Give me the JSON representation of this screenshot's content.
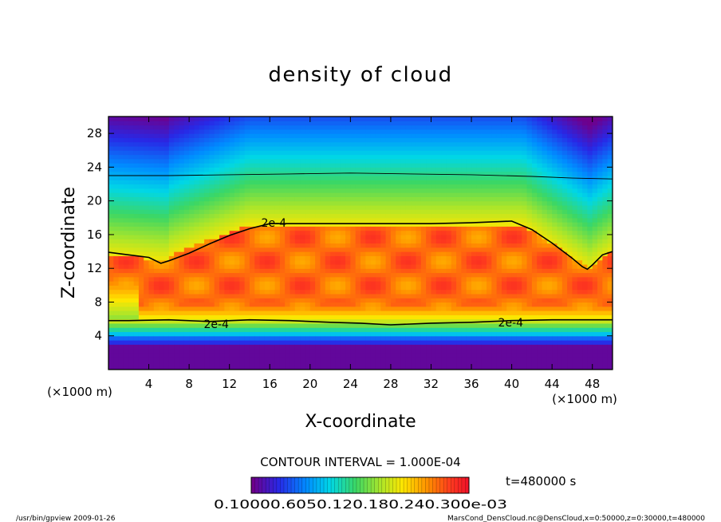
{
  "chart_data": {
    "type": "heatmap",
    "title": "density of cloud",
    "xlabel": "X-coordinate",
    "ylabel": "Z-coordinate",
    "x_unit": "(×1000 m)",
    "y_unit": "(×1000 m)",
    "xlim": [
      0,
      50
    ],
    "ylim": [
      0,
      30
    ],
    "x_ticks": [
      4,
      8,
      12,
      16,
      20,
      24,
      28,
      32,
      36,
      40,
      44,
      48
    ],
    "y_ticks": [
      4,
      8,
      12,
      16,
      20,
      24,
      28
    ],
    "x_tick_labels": [
      "4",
      "8",
      "12",
      "16",
      "20",
      "24",
      "28",
      "32",
      "36",
      "40",
      "44",
      "48"
    ],
    "y_tick_labels": [
      "4",
      "8",
      "12",
      "16",
      "20",
      "24",
      "28"
    ],
    "contour_interval_text": "CONTOUR INTERVAL = 1.000E-04",
    "contour_labels": [
      {
        "text": "2e-4",
        "x": 16.4,
        "z": 17.4
      },
      {
        "text": "2e-4",
        "x": 10.7,
        "z": 5.4
      },
      {
        "text": "2e-4",
        "x": 39.9,
        "z": 5.6
      }
    ],
    "contours": [
      {
        "level": 0.0002,
        "points": [
          [
            0,
            13.9
          ],
          [
            2,
            13.6
          ],
          [
            4,
            13.3
          ],
          [
            5.2,
            12.6
          ],
          [
            6,
            12.9
          ],
          [
            8,
            13.8
          ],
          [
            10,
            14.9
          ],
          [
            12,
            15.9
          ],
          [
            14,
            16.7
          ],
          [
            16,
            17.3
          ],
          [
            20,
            17.3
          ],
          [
            24,
            17.3
          ],
          [
            28,
            17.3
          ],
          [
            32,
            17.3
          ],
          [
            36,
            17.4
          ],
          [
            40,
            17.6
          ],
          [
            42,
            16.6
          ],
          [
            44,
            15.0
          ],
          [
            46,
            13.2
          ],
          [
            47,
            12.2
          ],
          [
            47.5,
            11.9
          ],
          [
            48,
            12.4
          ],
          [
            49,
            13.6
          ],
          [
            50,
            14.0
          ]
        ]
      },
      {
        "level": 0.0002,
        "points": [
          [
            0,
            5.8
          ],
          [
            2,
            5.8
          ],
          [
            6,
            5.9
          ],
          [
            10,
            5.7
          ],
          [
            14,
            5.9
          ],
          [
            18,
            5.8
          ],
          [
            22,
            5.6
          ],
          [
            25,
            5.5
          ],
          [
            28,
            5.3
          ],
          [
            32,
            5.5
          ],
          [
            36,
            5.6
          ],
          [
            40,
            5.8
          ],
          [
            44,
            5.9
          ],
          [
            48,
            5.9
          ],
          [
            50,
            5.9
          ]
        ]
      },
      {
        "level": 0.0001,
        "points": [
          [
            0,
            23.0
          ],
          [
            6,
            23.0
          ],
          [
            12,
            23.1
          ],
          [
            18,
            23.2
          ],
          [
            24,
            23.3
          ],
          [
            30,
            23.2
          ],
          [
            36,
            23.1
          ],
          [
            42,
            22.9
          ],
          [
            46,
            22.7
          ],
          [
            50,
            22.6
          ]
        ]
      }
    ],
    "colorbar_labels": [
      "0.10000e-3",
      "0.60000e-4",
      "0.12000e-3",
      "0.18000e-3",
      "0.24000e-3",
      "0.30000e-3"
    ],
    "colorbar_label_text": "0.10000.6050.120.180.240.300e-03",
    "time_label": "t=480000 s",
    "footer_left": "/usr/bin/gpview 2009-01-26",
    "footer_right": "MarsCond_DensCloud.nc@DensCloud,x=0:50000,z=0:30000,t=480000",
    "colors": {
      "background": "#ffffff",
      "contour": "#000000"
    }
  }
}
